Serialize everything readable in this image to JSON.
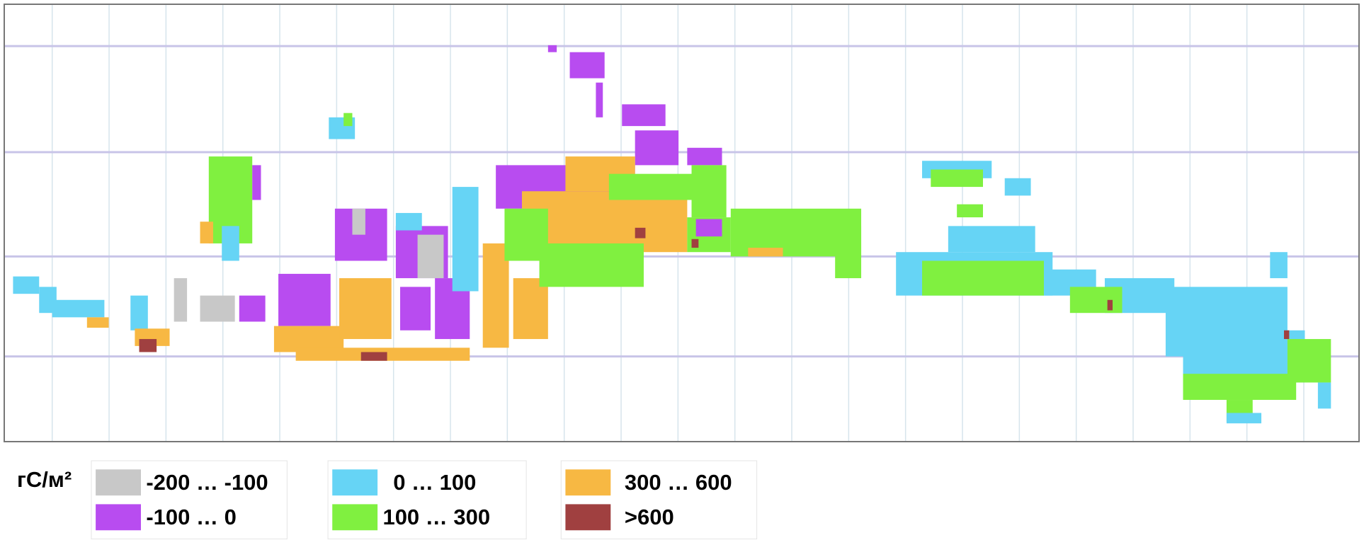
{
  "legend": {
    "unit": "гС/м²",
    "items": [
      {
        "label": "-200 … -100",
        "color": "#c8c8c8"
      },
      {
        "label": "-100 … 0",
        "color": "#b84cf0"
      },
      {
        "label": "0 … 100",
        "color": "#66d4f5"
      },
      {
        "label": "100 … 300",
        "color": "#80f040"
      },
      {
        "label": "300 … 600",
        "color": "#f7b843"
      },
      {
        "label": ">600",
        "color": "#a04040"
      }
    ]
  }
}
